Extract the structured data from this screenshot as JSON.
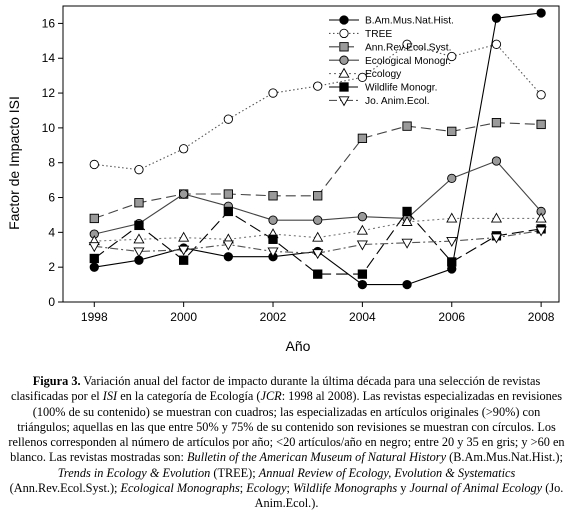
{
  "chart_data": {
    "type": "line",
    "xlabel": "Año",
    "ylabel": "Factor de Impacto ISI",
    "x": [
      1998,
      1999,
      2000,
      2001,
      2002,
      2003,
      2004,
      2005,
      2006,
      2007,
      2008
    ],
    "xticks": [
      "1998",
      "2000",
      "2002",
      "2004",
      "2006",
      "2008"
    ],
    "yticks": [
      "0",
      "2",
      "4",
      "6",
      "8",
      "10",
      "12",
      "14",
      "16"
    ],
    "xlim": [
      1997.3,
      2008.4
    ],
    "ylim": [
      0,
      17
    ],
    "legend_position": "top-right",
    "series": [
      {
        "name": "B.Am.Mus.Nat.Hist.",
        "marker": "circle",
        "fill": "#000000",
        "line": "#000000",
        "dash": "",
        "values": [
          2.0,
          2.4,
          3.1,
          2.6,
          2.6,
          2.9,
          1.0,
          1.0,
          1.9,
          16.3,
          16.6
        ]
      },
      {
        "name": "TREE",
        "marker": "circle",
        "fill": "#ffffff",
        "line": "#555555",
        "dash": "1.5,2.5",
        "values": [
          7.9,
          7.6,
          8.8,
          10.5,
          12.0,
          12.4,
          12.9,
          14.8,
          14.1,
          14.8,
          11.9
        ]
      },
      {
        "name": "Ann.Rev.Ecol.Syst.",
        "marker": "square",
        "fill": "#9a9a9a",
        "line": "#444444",
        "dash": "10,5",
        "values": [
          4.8,
          5.7,
          6.2,
          6.2,
          6.1,
          6.1,
          9.4,
          10.1,
          9.8,
          10.3,
          10.2
        ]
      },
      {
        "name": "Ecological Monogr.",
        "marker": "circle",
        "fill": "#9a9a9a",
        "line": "#444444",
        "dash": "",
        "values": [
          3.9,
          4.5,
          6.2,
          5.5,
          4.7,
          4.7,
          4.9,
          4.8,
          7.1,
          8.1,
          5.2
        ]
      },
      {
        "name": "Ecology",
        "marker": "triangle-up",
        "fill": "#ffffff",
        "line": "#777777",
        "dash": "2,3",
        "values": [
          3.5,
          3.6,
          3.7,
          3.6,
          3.9,
          3.7,
          4.1,
          4.6,
          4.8,
          4.8,
          4.8
        ]
      },
      {
        "name": "Wildlife Monogr.",
        "marker": "square",
        "fill": "#000000",
        "line": "#000000",
        "dash": "12,5",
        "values": [
          2.5,
          4.4,
          2.4,
          5.2,
          3.6,
          1.6,
          1.6,
          5.2,
          2.3,
          3.8,
          4.2
        ]
      },
      {
        "name": "Jo. Anim.Ecol.",
        "marker": "triangle-down",
        "fill": "#ffffff",
        "line": "#555555",
        "dash": "8,3,2,3",
        "values": [
          3.2,
          2.9,
          3.0,
          3.3,
          2.9,
          2.8,
          3.3,
          3.4,
          3.5,
          3.7,
          4.1
        ]
      }
    ]
  },
  "caption": {
    "label": "Figura 3.",
    "text_1": " Variación anual del factor de impacto durante la última década para una selección de revistas clasificadas por el ",
    "isi": "ISI",
    "text_2": " en la categoría de Ecología (",
    "jcr": "JCR",
    "text_3": ": 1998 al 2008). Las revistas especializadas en revisiones (100% de su contenido) se muestran con cuadros; las especializadas en artículos originales (>90%) con triángulos; aquellas en las que entre 50% y 75% de su contenido son revisiones se muestran con círculos. Los rellenos corresponden al número de artículos por año; <20 artículos/año en negro; entre 20 y 35 en gris;  y >60 en blanco. Las revistas mostradas son: ",
    "j1": "Bulletin of the American Museum of Natural History",
    "j1_abbr": " (B.Am.Mus.Nat.Hist.); ",
    "j2": "Trends in Ecology & Evolution",
    "j2_abbr": " (TREE); ",
    "j3": "Annual Review of Ecology, Evolution & Systematics",
    "j3_abbr": " (Ann.Rev.Ecol.Syst.); ",
    "j4": "Ecological Monographs",
    "sep1": "; ",
    "j5": "Ecology",
    "sep2": "; ",
    "j6": "Wildlife Monographs",
    "y_conj": " y ",
    "j7": "Journal of Animal Ecology",
    "j7_abbr": " (Jo. Anim.Ecol.)."
  }
}
